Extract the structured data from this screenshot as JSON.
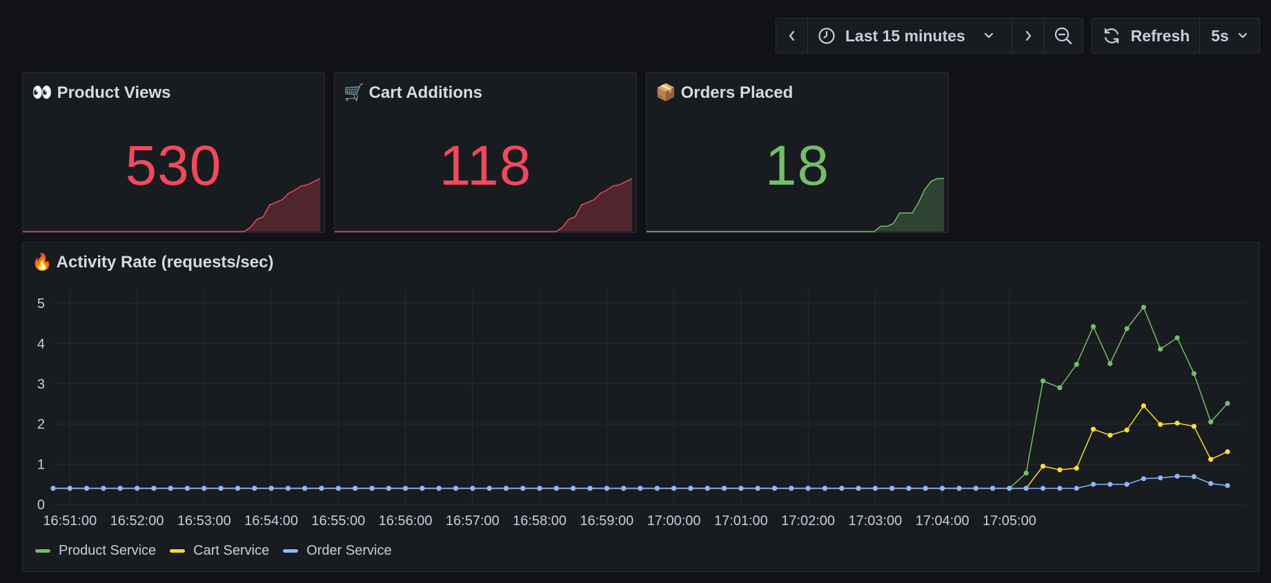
{
  "toolbar": {
    "time_range_label": "Last 15 minutes",
    "refresh_label": "Refresh",
    "interval_label": "5s"
  },
  "stats": [
    {
      "title": "Product Views",
      "emoji": "👀",
      "value": "530",
      "color": "#f2495c",
      "spark": [
        0,
        0,
        0,
        0,
        0,
        0,
        0,
        0,
        0,
        0,
        0,
        0,
        0,
        0,
        0,
        0,
        0,
        0,
        0,
        0,
        0,
        0,
        0,
        0,
        0,
        0,
        0,
        0,
        0,
        0,
        0,
        0,
        0,
        0,
        0,
        0,
        0.08,
        0.23,
        0.28,
        0.5,
        0.55,
        0.6,
        0.72,
        0.78,
        0.86,
        0.88,
        0.94,
        1
      ]
    },
    {
      "title": "Cart Additions",
      "emoji": "🛒",
      "value": "118",
      "color": "#f2495c",
      "spark": [
        0,
        0,
        0,
        0,
        0,
        0,
        0,
        0,
        0,
        0,
        0,
        0,
        0,
        0,
        0,
        0,
        0,
        0,
        0,
        0,
        0,
        0,
        0,
        0,
        0,
        0,
        0,
        0,
        0,
        0,
        0,
        0,
        0,
        0,
        0,
        0,
        0.08,
        0.23,
        0.28,
        0.5,
        0.55,
        0.6,
        0.72,
        0.78,
        0.86,
        0.88,
        0.94,
        1
      ]
    },
    {
      "title": "Orders Placed",
      "emoji": "📦",
      "value": "18",
      "color": "#73bf69",
      "spark": [
        0,
        0,
        0,
        0,
        0,
        0,
        0,
        0,
        0,
        0,
        0,
        0,
        0,
        0,
        0,
        0,
        0,
        0,
        0,
        0,
        0,
        0,
        0,
        0,
        0,
        0,
        0,
        0,
        0,
        0,
        0,
        0,
        0,
        0,
        0,
        0,
        0,
        0.1,
        0.1,
        0.15,
        0.35,
        0.35,
        0.35,
        0.55,
        0.8,
        0.95,
        1,
        1
      ]
    }
  ],
  "activity_panel": {
    "title": "Activity Rate (requests/sec)",
    "emoji": "🔥"
  },
  "chart_data": {
    "type": "line",
    "title": "Activity Rate (requests/sec)",
    "xlabel": "",
    "ylabel": "",
    "ylim": [
      0,
      5
    ],
    "yticks": [
      0,
      1,
      2,
      3,
      4,
      5
    ],
    "x_tick_labels": [
      "16:51:00",
      "16:52:00",
      "16:53:00",
      "16:54:00",
      "16:55:00",
      "16:56:00",
      "16:57:00",
      "16:58:00",
      "16:59:00",
      "17:00:00",
      "17:01:00",
      "17:02:00",
      "17:03:00",
      "17:04:00",
      "17:05:00"
    ],
    "x_start": "16:50:45",
    "x_step_seconds": 15,
    "grid": true,
    "legend_position": "bottom-left",
    "series": [
      {
        "name": "Product Service",
        "color": "#73bf69",
        "values": [
          0.4,
          0.4,
          0.4,
          0.4,
          0.4,
          0.4,
          0.4,
          0.4,
          0.4,
          0.4,
          0.4,
          0.4,
          0.4,
          0.4,
          0.4,
          0.4,
          0.4,
          0.4,
          0.4,
          0.4,
          0.4,
          0.4,
          0.4,
          0.4,
          0.4,
          0.4,
          0.4,
          0.4,
          0.4,
          0.4,
          0.4,
          0.4,
          0.4,
          0.4,
          0.4,
          0.4,
          0.4,
          0.4,
          0.4,
          0.4,
          0.4,
          0.4,
          0.4,
          0.4,
          0.4,
          0.4,
          0.4,
          0.4,
          0.4,
          0.4,
          0.4,
          0.4,
          0.4,
          0.4,
          0.4,
          0.4,
          0.4,
          0.4,
          0.78,
          3.07,
          2.9,
          3.48,
          4.42,
          3.5,
          4.37,
          4.9,
          3.86,
          4.14,
          3.25,
          2.05,
          2.51
        ]
      },
      {
        "name": "Cart Service",
        "color": "#fade2a",
        "values": [
          0.4,
          0.4,
          0.4,
          0.4,
          0.4,
          0.4,
          0.4,
          0.4,
          0.4,
          0.4,
          0.4,
          0.4,
          0.4,
          0.4,
          0.4,
          0.4,
          0.4,
          0.4,
          0.4,
          0.4,
          0.4,
          0.4,
          0.4,
          0.4,
          0.4,
          0.4,
          0.4,
          0.4,
          0.4,
          0.4,
          0.4,
          0.4,
          0.4,
          0.4,
          0.4,
          0.4,
          0.4,
          0.4,
          0.4,
          0.4,
          0.4,
          0.4,
          0.4,
          0.4,
          0.4,
          0.4,
          0.4,
          0.4,
          0.4,
          0.4,
          0.4,
          0.4,
          0.4,
          0.4,
          0.4,
          0.4,
          0.4,
          0.4,
          0.4,
          0.95,
          0.86,
          0.9,
          1.87,
          1.72,
          1.85,
          2.45,
          1.99,
          2.02,
          1.94,
          1.12,
          1.31
        ]
      },
      {
        "name": "Order Service",
        "color": "#8ab8ff",
        "values": [
          0.4,
          0.4,
          0.4,
          0.4,
          0.4,
          0.4,
          0.4,
          0.4,
          0.4,
          0.4,
          0.4,
          0.4,
          0.4,
          0.4,
          0.4,
          0.4,
          0.4,
          0.4,
          0.4,
          0.4,
          0.4,
          0.4,
          0.4,
          0.4,
          0.4,
          0.4,
          0.4,
          0.4,
          0.4,
          0.4,
          0.4,
          0.4,
          0.4,
          0.4,
          0.4,
          0.4,
          0.4,
          0.4,
          0.4,
          0.4,
          0.4,
          0.4,
          0.4,
          0.4,
          0.4,
          0.4,
          0.4,
          0.4,
          0.4,
          0.4,
          0.4,
          0.4,
          0.4,
          0.4,
          0.4,
          0.4,
          0.4,
          0.4,
          0.4,
          0.4,
          0.4,
          0.4,
          0.5,
          0.5,
          0.5,
          0.64,
          0.66,
          0.7,
          0.69,
          0.52,
          0.47
        ]
      }
    ]
  }
}
